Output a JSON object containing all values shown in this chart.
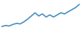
{
  "values": [
    1,
    2,
    1.5,
    3,
    4,
    3.5,
    5.5,
    8,
    11,
    14,
    11,
    13,
    10,
    12,
    10,
    12,
    14,
    13,
    15,
    17,
    19,
    22
  ],
  "line_color": "#4a90c4",
  "linewidth": 1.3,
  "background_color": "#ffffff"
}
